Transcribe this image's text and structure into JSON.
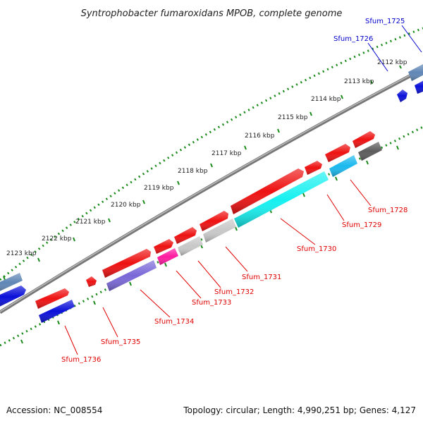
{
  "title": "Syntrophobacter fumaroxidans MPOB, complete genome",
  "ticks": [
    "2112 kbp",
    "2113 kbp",
    "2114 kbp",
    "2115 kbp",
    "2116 kbp",
    "2117 kbp",
    "2118 kbp",
    "2119 kbp",
    "2120 kbp",
    "2121 kbp",
    "2122 kbp",
    "2123 kbp"
  ],
  "genes": [
    {
      "label": "Sfum_1725",
      "color": "#0000cc"
    },
    {
      "label": "Sfum_1726",
      "color": "#0000cc"
    },
    {
      "label": "Sfum_1728",
      "color": "#e00000"
    },
    {
      "label": "Sfum_1729",
      "color": "#e00000"
    },
    {
      "label": "Sfum_1730",
      "color": "#e00000"
    },
    {
      "label": "Sfum_1731",
      "color": "#e00000"
    },
    {
      "label": "Sfum_1732",
      "color": "#e00000"
    },
    {
      "label": "Sfum_1733",
      "color": "#e00000"
    },
    {
      "label": "Sfum_1734",
      "color": "#e00000"
    },
    {
      "label": "Sfum_1735",
      "color": "#e00000"
    },
    {
      "label": "Sfum_1736",
      "color": "#e00000"
    }
  ],
  "footer": {
    "accession": "Accession: NC_008554",
    "summary": "Topology: circular; Length: 4,990,251 bp; Genes: 4,127"
  }
}
